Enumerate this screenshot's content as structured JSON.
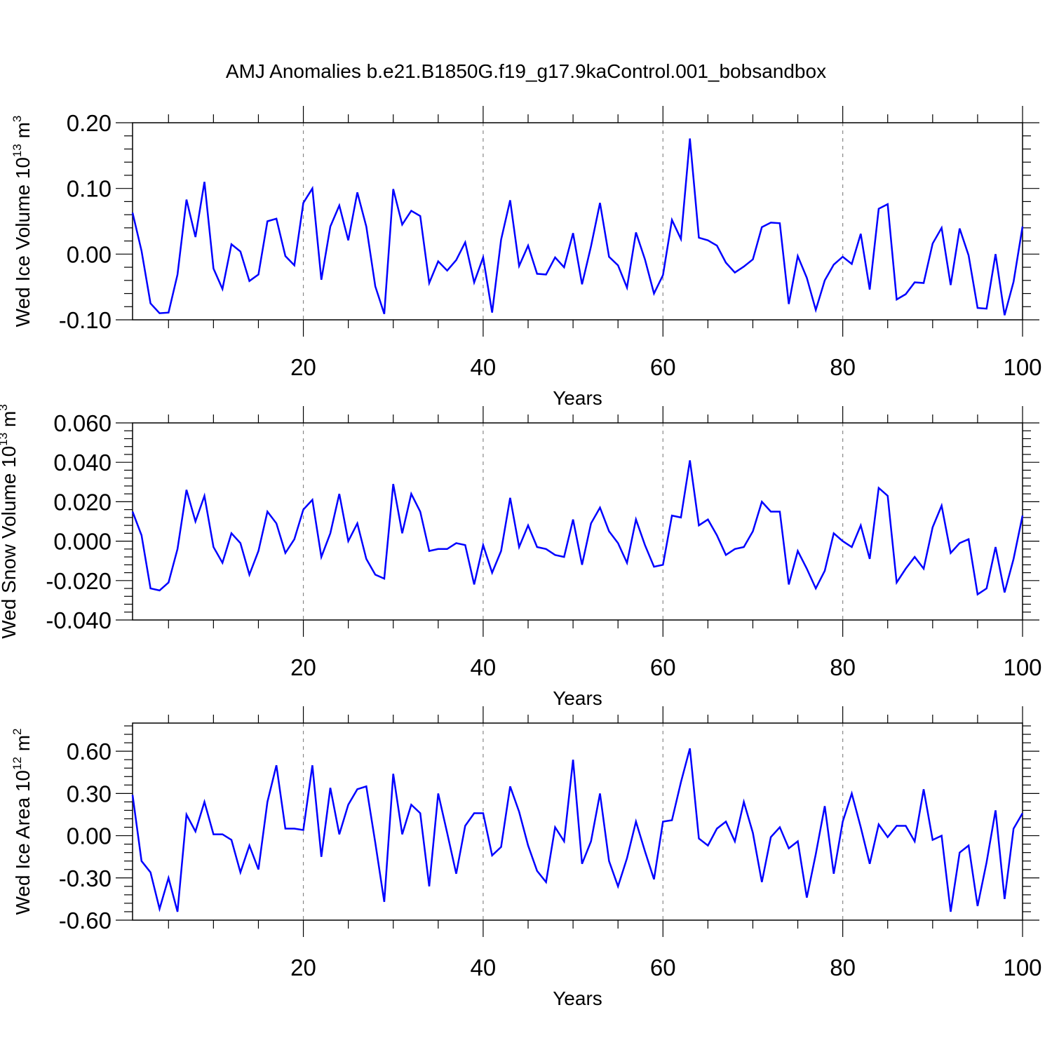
{
  "chart_data": [
    {
      "type": "line",
      "title": "AMJ Anomalies b.e21.B1850G.f19_g17.9kaControl.001_bobsandbox",
      "xlabel": "Years",
      "ylabel": "Wed Ice Volume 10",
      "ylabel_exp": "13",
      "ylabel_unit": " m",
      "ylabel_unit_exp": "3",
      "xlim": [
        1,
        100
      ],
      "ylim": [
        -0.1,
        0.2
      ],
      "yticks": [
        -0.1,
        0.0,
        0.1,
        0.2
      ],
      "ytick_labels": [
        "-0.10",
        "0.00",
        "0.10",
        "0.20"
      ],
      "xticks": [
        20,
        40,
        60,
        80,
        100
      ],
      "xtick_labels": [
        "20",
        "40",
        "60",
        "80",
        "100"
      ],
      "grid": "vertical dashed",
      "color": "#0000ff",
      "x_start": 1,
      "values": [
        0.063,
        0.005,
        -0.075,
        -0.09,
        -0.089,
        -0.031,
        0.083,
        0.026,
        0.11,
        -0.022,
        -0.053,
        0.015,
        0.004,
        -0.041,
        -0.031,
        0.05,
        0.054,
        -0.003,
        -0.017,
        0.078,
        0.1,
        -0.039,
        0.042,
        0.074,
        0.021,
        0.094,
        0.042,
        -0.049,
        -0.091,
        0.099,
        0.045,
        0.066,
        0.058,
        -0.044,
        -0.011,
        -0.025,
        -0.009,
        0.018,
        -0.043,
        -0.005,
        -0.089,
        0.022,
        0.082,
        -0.018,
        0.013,
        -0.03,
        -0.031,
        -0.005,
        -0.02,
        0.032,
        -0.046,
        0.012,
        0.078,
        -0.004,
        -0.017,
        -0.051,
        0.033,
        -0.008,
        -0.06,
        -0.032,
        0.052,
        0.023,
        0.176,
        0.025,
        0.021,
        0.013,
        -0.013,
        -0.028,
        -0.019,
        -0.008,
        0.041,
        0.048,
        0.047,
        -0.076,
        -0.003,
        -0.036,
        -0.085,
        -0.04,
        -0.016,
        -0.004,
        -0.015,
        0.031,
        -0.054,
        0.069,
        0.076,
        -0.069,
        -0.061,
        -0.043,
        -0.044,
        0.016,
        0.04,
        -0.047,
        0.039,
        -0.002,
        -0.082,
        -0.083,
        0.0,
        -0.093,
        -0.042,
        0.042
      ]
    },
    {
      "type": "line",
      "xlabel": "Years",
      "ylabel": "Wed Snow Volume 10",
      "ylabel_exp": "13",
      "ylabel_unit": " m",
      "ylabel_unit_exp": "3",
      "xlim": [
        1,
        100
      ],
      "ylim": [
        -0.04,
        0.06
      ],
      "yticks": [
        -0.04,
        -0.02,
        0.0,
        0.02,
        0.04,
        0.06
      ],
      "ytick_labels": [
        "-0.040",
        "-0.020",
        "0.000",
        "0.020",
        "0.040",
        "0.060"
      ],
      "xticks": [
        20,
        40,
        60,
        80,
        100
      ],
      "xtick_labels": [
        "20",
        "40",
        "60",
        "80",
        "100"
      ],
      "grid": "vertical dashed",
      "color": "#0000ff",
      "x_start": 1,
      "values": [
        0.015,
        0.003,
        -0.024,
        -0.025,
        -0.021,
        -0.004,
        0.026,
        0.01,
        0.023,
        -0.003,
        -0.011,
        0.004,
        -0.001,
        -0.017,
        -0.005,
        0.015,
        0.009,
        -0.006,
        0.001,
        0.016,
        0.021,
        -0.008,
        0.004,
        0.024,
        -0.0,
        0.009,
        -0.009,
        -0.017,
        -0.019,
        0.029,
        0.004,
        0.024,
        0.015,
        -0.005,
        -0.004,
        -0.004,
        -0.001,
        -0.002,
        -0.022,
        -0.002,
        -0.016,
        -0.005,
        0.022,
        -0.003,
        0.008,
        -0.003,
        -0.004,
        -0.007,
        -0.008,
        0.011,
        -0.012,
        0.009,
        0.017,
        0.005,
        -0.001,
        -0.011,
        0.011,
        -0.002,
        -0.013,
        -0.012,
        0.013,
        0.012,
        0.041,
        0.008,
        0.011,
        0.003,
        -0.007,
        -0.004,
        -0.003,
        0.005,
        0.02,
        0.015,
        0.015,
        -0.022,
        -0.005,
        -0.014,
        -0.024,
        -0.015,
        0.004,
        0.0,
        -0.003,
        0.008,
        -0.009,
        0.027,
        0.023,
        -0.021,
        -0.014,
        -0.008,
        -0.014,
        0.007,
        0.018,
        -0.006,
        -0.001,
        0.001,
        -0.027,
        -0.024,
        -0.003,
        -0.026,
        -0.009,
        0.013
      ]
    },
    {
      "type": "line",
      "xlabel": "Years",
      "ylabel": "Wed Ice Area 10",
      "ylabel_exp": "12",
      "ylabel_unit": " m",
      "ylabel_unit_exp": "2",
      "xlim": [
        1,
        100
      ],
      "ylim": [
        -0.6,
        0.8
      ],
      "yticks": [
        -0.6,
        -0.3,
        0.0,
        0.3,
        0.6
      ],
      "ytick_labels": [
        "-0.60",
        "-0.30",
        "0.00",
        "0.30",
        "0.60"
      ],
      "xticks": [
        20,
        40,
        60,
        80,
        100
      ],
      "xtick_labels": [
        "20",
        "40",
        "60",
        "80",
        "100"
      ],
      "grid": "vertical dashed",
      "color": "#0000ff",
      "x_start": 1,
      "values": [
        0.29,
        -0.18,
        -0.26,
        -0.52,
        -0.3,
        -0.54,
        0.15,
        0.03,
        0.24,
        0.01,
        0.01,
        -0.03,
        -0.26,
        -0.07,
        -0.24,
        0.24,
        0.5,
        0.05,
        0.05,
        0.04,
        0.5,
        -0.15,
        0.34,
        0.01,
        0.22,
        0.33,
        0.35,
        -0.05,
        -0.47,
        0.44,
        0.01,
        0.22,
        0.16,
        -0.36,
        0.3,
        0.02,
        -0.27,
        0.07,
        0.16,
        0.16,
        -0.14,
        -0.08,
        0.35,
        0.17,
        -0.07,
        -0.25,
        -0.33,
        0.06,
        -0.04,
        0.54,
        -0.2,
        -0.04,
        0.3,
        -0.18,
        -0.36,
        -0.16,
        0.1,
        -0.11,
        -0.31,
        0.1,
        0.11,
        0.38,
        0.62,
        -0.02,
        -0.07,
        0.05,
        0.1,
        -0.04,
        0.24,
        0.02,
        -0.33,
        -0.01,
        0.06,
        -0.09,
        -0.04,
        -0.44,
        -0.13,
        0.21,
        -0.27,
        0.1,
        0.3,
        0.06,
        -0.2,
        0.08,
        -0.01,
        0.07,
        0.07,
        -0.04,
        0.33,
        -0.03,
        0.0,
        -0.54,
        -0.12,
        -0.07,
        -0.5,
        -0.19,
        0.18,
        -0.45,
        0.05,
        0.16
      ]
    }
  ]
}
